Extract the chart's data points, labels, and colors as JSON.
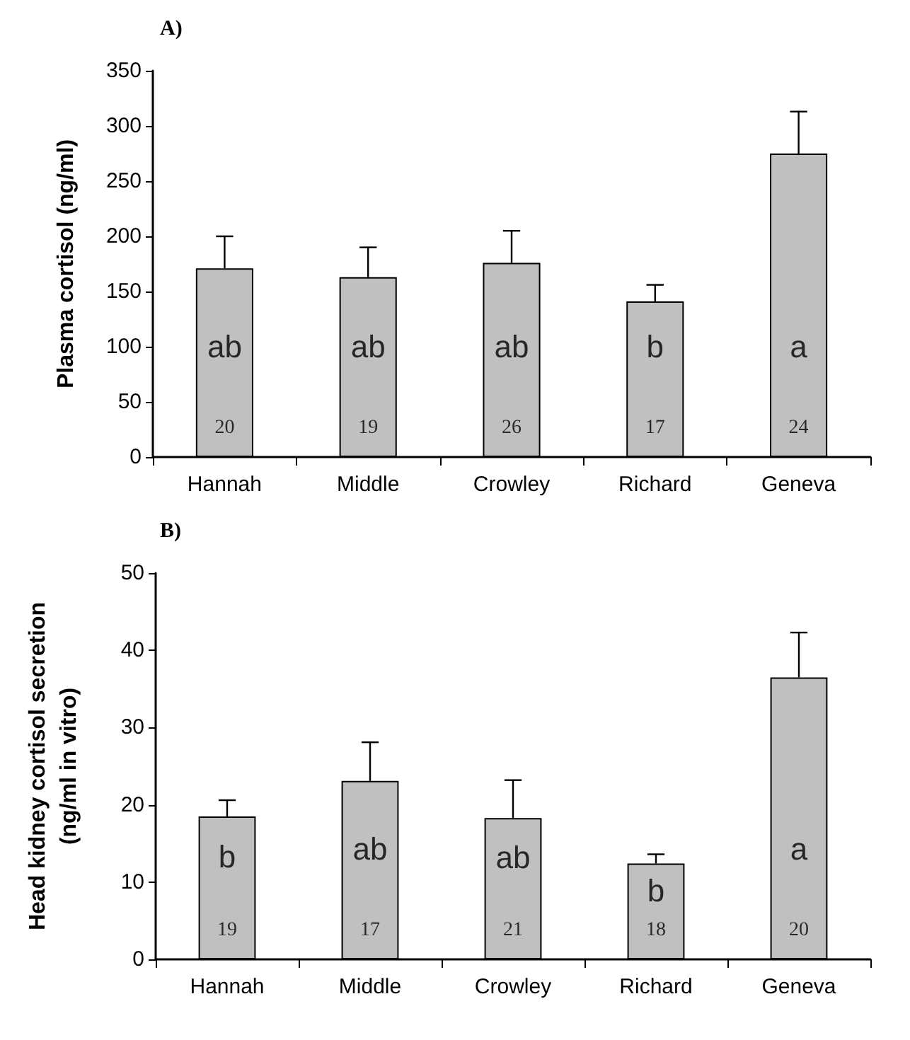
{
  "chart_data": [
    {
      "type": "bar",
      "title": "A)",
      "ylabel": "Plasma cortisol (ng/ml)",
      "categories": [
        "Hannah",
        "Middle",
        "Crowley",
        "Richard",
        "Geneva"
      ],
      "values": [
        171,
        163,
        176,
        141,
        275
      ],
      "errors": [
        [
          171,
          200
        ],
        [
          163,
          190
        ],
        [
          176,
          205
        ],
        [
          141,
          156
        ],
        [
          275,
          313
        ]
      ],
      "color": "#c0c0c0",
      "ylim": [
        0,
        350
      ],
      "yticks": [
        0,
        50,
        100,
        150,
        200,
        250,
        300,
        350
      ],
      "grid": false,
      "annotations": [
        "ab",
        "ab",
        "ab",
        "b",
        "a",
        "20",
        "19",
        "26",
        "17",
        "24"
      ]
    },
    {
      "type": "bar",
      "title": "B)",
      "ylabel": "Head kidney cortisol secretion\n(ng/ml in vitro)",
      "categories": [
        "Hannah",
        "Middle",
        "Crowley",
        "Richard",
        "Geneva"
      ],
      "values": [
        18.5,
        23.1,
        18.3,
        12.4,
        36.5
      ],
      "errors": [
        [
          18.5,
          20.6
        ],
        [
          23.1,
          28.1
        ],
        [
          18.3,
          23.2
        ],
        [
          12.4,
          13.6
        ],
        [
          36.5,
          42.3
        ]
      ],
      "color": "#c0c0c0",
      "ylim": [
        0,
        50
      ],
      "yticks": [
        0,
        10,
        20,
        30,
        40,
        50
      ],
      "grid": false,
      "annotations": [
        "b",
        "ab",
        "ab",
        "b",
        "a",
        "19",
        "17",
        "21",
        "18",
        "20"
      ]
    }
  ]
}
